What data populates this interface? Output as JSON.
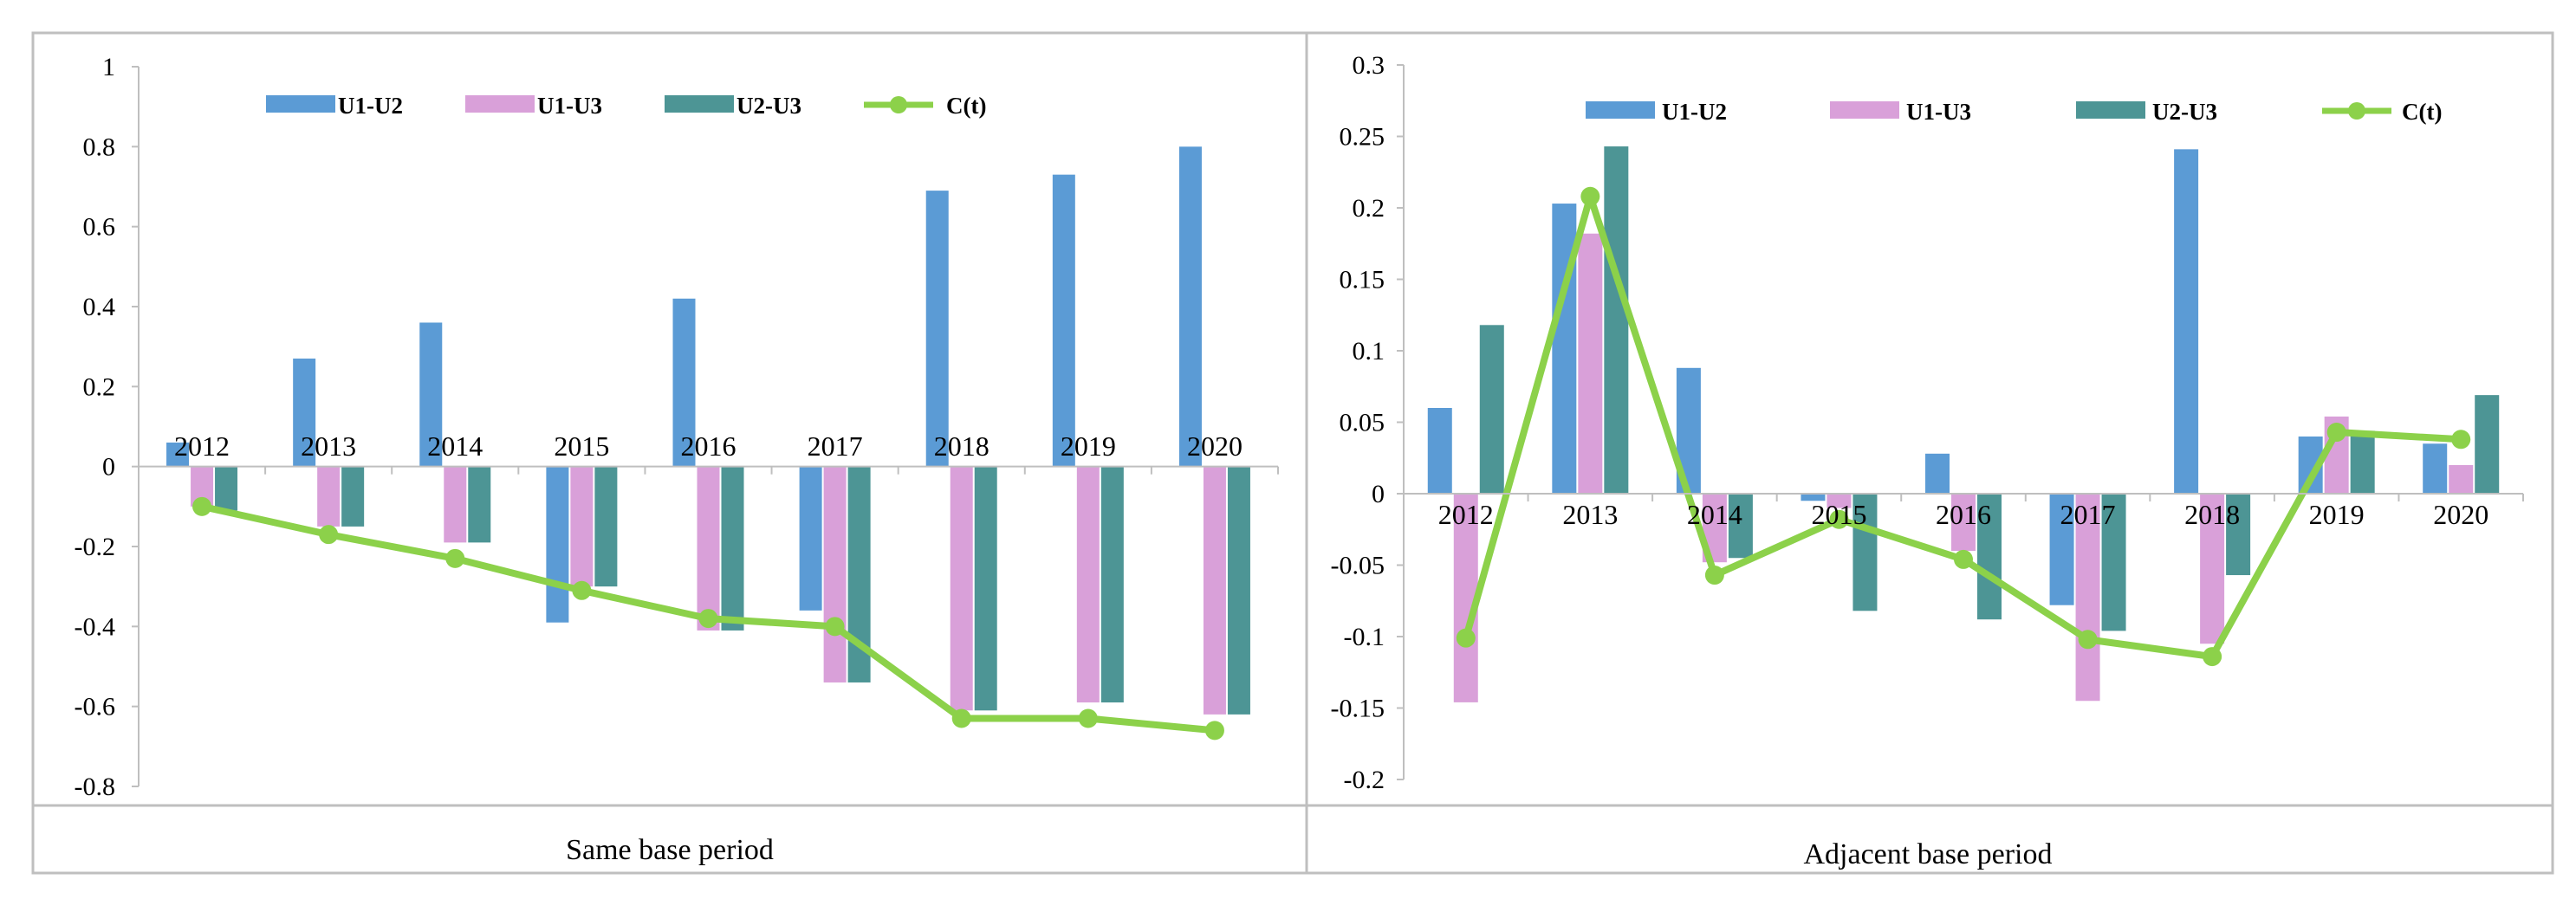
{
  "chart_data": [
    {
      "type": "bar",
      "title": "",
      "caption": "Same base period",
      "categories": [
        "2012",
        "2013",
        "2014",
        "2015",
        "2016",
        "2017",
        "2018",
        "2019",
        "2020"
      ],
      "series": [
        {
          "name": "U1-U2",
          "kind": "bar",
          "color": "#5B9BD5",
          "values": [
            0.06,
            0.27,
            0.36,
            -0.39,
            0.42,
            -0.36,
            0.69,
            0.73,
            0.8
          ]
        },
        {
          "name": "U1-U3",
          "kind": "bar",
          "color": "#D9A0D9",
          "values": [
            -0.1,
            -0.15,
            -0.19,
            -0.3,
            -0.41,
            -0.54,
            -0.61,
            -0.59,
            -0.62
          ]
        },
        {
          "name": "U2-U3",
          "kind": "bar",
          "color": "#4D9595",
          "values": [
            -0.11,
            -0.15,
            -0.19,
            -0.3,
            -0.41,
            -0.54,
            -0.61,
            -0.59,
            -0.62
          ]
        },
        {
          "name": "C(t)",
          "kind": "line",
          "color": "#8CD14A",
          "values": [
            -0.1,
            -0.17,
            -0.23,
            -0.31,
            -0.38,
            -0.4,
            -0.63,
            -0.63,
            -0.66
          ]
        }
      ],
      "yticks": [
        "1",
        "0.8",
        "0.6",
        "0.4",
        "0.2",
        "0",
        "-0.2",
        "-0.4",
        "-0.6",
        "-0.8"
      ],
      "ylim": [
        -0.8,
        1
      ],
      "xlabel": "",
      "ylabel": "",
      "legend": "top"
    },
    {
      "type": "bar",
      "title": "",
      "caption": "Adjacent base period",
      "categories": [
        "2012",
        "2013",
        "2014",
        "2015",
        "2016",
        "2017",
        "2018",
        "2019",
        "2020"
      ],
      "series": [
        {
          "name": "U1-U2",
          "kind": "bar",
          "color": "#5B9BD5",
          "values": [
            0.06,
            0.203,
            0.088,
            -0.005,
            0.028,
            -0.078,
            0.241,
            0.04,
            0.035
          ]
        },
        {
          "name": "U1-U3",
          "kind": "bar",
          "color": "#D9A0D9",
          "values": [
            -0.146,
            0.182,
            -0.048,
            -0.01,
            -0.04,
            -0.145,
            -0.105,
            0.054,
            0.02
          ]
        },
        {
          "name": "U2-U3",
          "kind": "bar",
          "color": "#4D9595",
          "values": [
            0.118,
            0.243,
            -0.045,
            -0.082,
            -0.088,
            -0.096,
            -0.057,
            0.044,
            0.069
          ]
        },
        {
          "name": "C(t)",
          "kind": "line",
          "color": "#8CD14A",
          "values": [
            -0.101,
            0.208,
            -0.057,
            -0.018,
            -0.046,
            -0.102,
            -0.114,
            0.043,
            0.038
          ]
        }
      ],
      "yticks": [
        "0.3",
        "0.25",
        "0.2",
        "0.15",
        "0.1",
        "0.05",
        "0",
        "-0.05",
        "-0.1",
        "-0.15",
        "-0.2"
      ],
      "ylim": [
        -0.2,
        0.3
      ],
      "xlabel": "",
      "ylabel": "",
      "legend": "top"
    }
  ]
}
